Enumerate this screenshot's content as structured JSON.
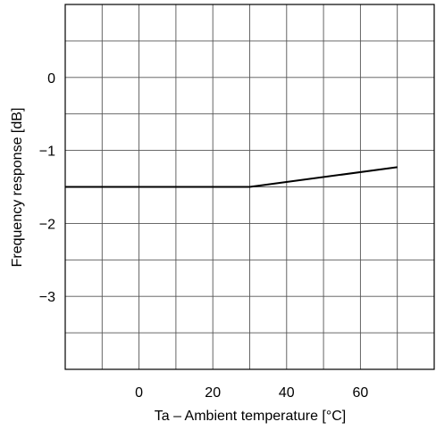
{
  "chart_data": {
    "type": "line",
    "title": "",
    "xlabel": "Ta – Ambient temperature [°C]",
    "ylabel": "Frequency response [dB]",
    "xlim": [
      -20,
      80
    ],
    "ylim": [
      -4,
      1
    ],
    "grid": true,
    "x_ticks": [
      {
        "value": 0,
        "label": "0"
      },
      {
        "value": 20,
        "label": "20"
      },
      {
        "value": 40,
        "label": "40"
      },
      {
        "value": 60,
        "label": "60"
      }
    ],
    "y_ticks": [
      {
        "value": 0,
        "label": "0"
      },
      {
        "value": -1,
        "label": "−1"
      },
      {
        "value": -2,
        "label": "−2"
      },
      {
        "value": -3,
        "label": "−3"
      }
    ],
    "x_grid": [
      -10,
      0,
      10,
      20,
      30,
      40,
      50,
      60,
      70
    ],
    "y_grid": [
      0.5,
      0,
      -0.5,
      -1,
      -1.5,
      -2,
      -2.5,
      -3,
      -3.5
    ],
    "series": [
      {
        "x": [
          -20,
          30,
          70
        ],
        "y": [
          -1.5,
          -1.5,
          -1.23
        ]
      }
    ],
    "line_color": "#000000",
    "grid_color": "#555555"
  }
}
